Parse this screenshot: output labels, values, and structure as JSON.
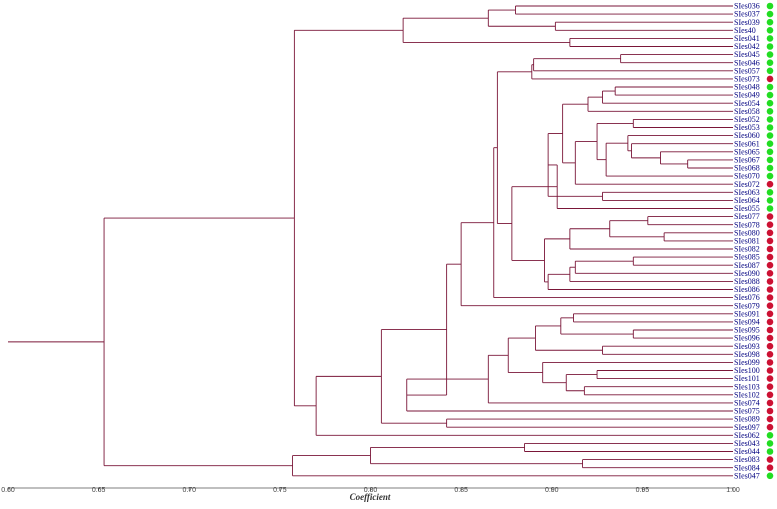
{
  "chart_data": {
    "type": "dendrogram",
    "xlabel": "Coefficient",
    "xlim": [
      0.6,
      1.0
    ],
    "ticks": [
      "0.60",
      "0.65",
      "0.70",
      "0.75",
      "0.80",
      "0.85",
      "0.90",
      "0.95",
      "1.00"
    ],
    "group_colors": {
      "green": "#22dd22",
      "red": "#cc1133"
    },
    "branch_color": "#7a1638",
    "leaves": [
      {
        "label": "SIes036",
        "group": "green"
      },
      {
        "label": "SIes037",
        "group": "green"
      },
      {
        "label": "SIes039",
        "group": "green"
      },
      {
        "label": "SIes40",
        "group": "green"
      },
      {
        "label": "SIes041",
        "group": "green"
      },
      {
        "label": "SIes042",
        "group": "green"
      },
      {
        "label": "SIes045",
        "group": "green"
      },
      {
        "label": "SIes046",
        "group": "green"
      },
      {
        "label": "SIes057",
        "group": "green"
      },
      {
        "label": "SIes073",
        "group": "red"
      },
      {
        "label": "SIes048",
        "group": "green"
      },
      {
        "label": "SIes049",
        "group": "green"
      },
      {
        "label": "SIes054",
        "group": "green"
      },
      {
        "label": "SIes058",
        "group": "green"
      },
      {
        "label": "SIes052",
        "group": "green"
      },
      {
        "label": "SIes053",
        "group": "green"
      },
      {
        "label": "SIes060",
        "group": "green"
      },
      {
        "label": "SIes061",
        "group": "green"
      },
      {
        "label": "SIes065",
        "group": "green"
      },
      {
        "label": "SIes067",
        "group": "green"
      },
      {
        "label": "SIes068",
        "group": "green"
      },
      {
        "label": "SIes070",
        "group": "green"
      },
      {
        "label": "SIes072",
        "group": "red"
      },
      {
        "label": "SIes063",
        "group": "green"
      },
      {
        "label": "SIes064",
        "group": "green"
      },
      {
        "label": "SIes055",
        "group": "green"
      },
      {
        "label": "SIes077",
        "group": "red"
      },
      {
        "label": "SIes078",
        "group": "red"
      },
      {
        "label": "SIes080",
        "group": "red"
      },
      {
        "label": "SIes081",
        "group": "red"
      },
      {
        "label": "SIes082",
        "group": "red"
      },
      {
        "label": "SIes085",
        "group": "red"
      },
      {
        "label": "SIes087",
        "group": "red"
      },
      {
        "label": "SIes090",
        "group": "red"
      },
      {
        "label": "SIes088",
        "group": "red"
      },
      {
        "label": "SIes086",
        "group": "red"
      },
      {
        "label": "SIes076",
        "group": "red"
      },
      {
        "label": "SIes079",
        "group": "red"
      },
      {
        "label": "SIes091",
        "group": "red"
      },
      {
        "label": "SIes094",
        "group": "red"
      },
      {
        "label": "SIes095",
        "group": "red"
      },
      {
        "label": "SIes096",
        "group": "red"
      },
      {
        "label": "SIes093",
        "group": "red"
      },
      {
        "label": "SIes098",
        "group": "red"
      },
      {
        "label": "SIes099",
        "group": "red"
      },
      {
        "label": "SIes100",
        "group": "red"
      },
      {
        "label": "SIes101",
        "group": "red"
      },
      {
        "label": "SIes103",
        "group": "red"
      },
      {
        "label": "SIes102",
        "group": "red"
      },
      {
        "label": "SIes074",
        "group": "red"
      },
      {
        "label": "SIes075",
        "group": "red"
      },
      {
        "label": "SIes089",
        "group": "red"
      },
      {
        "label": "SIes097",
        "group": "red"
      },
      {
        "label": "SIes062",
        "group": "green"
      },
      {
        "label": "SIes043",
        "group": "green"
      },
      {
        "label": "SIes044",
        "group": "green"
      },
      {
        "label": "SIes083",
        "group": "red"
      },
      {
        "label": "SIes084",
        "group": "red"
      },
      {
        "label": "SIes047",
        "group": "green"
      }
    ],
    "merges": [
      {
        "a": "L0",
        "b": "L1",
        "c": 0.88
      },
      {
        "a": "L2",
        "b": "L3",
        "c": 0.902
      },
      {
        "a": "n0",
        "b": "n1",
        "c": 0.865
      },
      {
        "a": "L4",
        "b": "L5",
        "c": 0.91
      },
      {
        "a": "n2",
        "b": "n3",
        "c": 0.818
      },
      {
        "a": "L6",
        "b": "L7",
        "c": 0.938
      },
      {
        "a": "n5",
        "b": "L8",
        "c": 0.89
      },
      {
        "a": "n6",
        "b": "L9",
        "c": 0.889
      },
      {
        "a": "L10",
        "b": "L11",
        "c": 0.935
      },
      {
        "a": "n8",
        "b": "L12",
        "c": 0.928
      },
      {
        "a": "n9",
        "b": "L13",
        "c": 0.92
      },
      {
        "a": "L14",
        "b": "L15",
        "c": 0.945
      },
      {
        "a": "L19",
        "b": "L20",
        "c": 0.975
      },
      {
        "a": "L18",
        "b": "n12",
        "c": 0.96
      },
      {
        "a": "L17",
        "b": "n13",
        "c": 0.944
      },
      {
        "a": "L16",
        "b": "n14",
        "c": 0.942
      },
      {
        "a": "n15",
        "b": "L21",
        "c": 0.93
      },
      {
        "a": "n11",
        "b": "n16",
        "c": 0.925
      },
      {
        "a": "n17",
        "b": "L22",
        "c": 0.913
      },
      {
        "a": "n10",
        "b": "n18",
        "c": 0.906
      },
      {
        "a": "L23",
        "b": "L24",
        "c": 0.928
      },
      {
        "a": "n19",
        "b": "n20",
        "c": 0.898
      },
      {
        "a": "n21",
        "b": "L25",
        "c": 0.903
      },
      {
        "a": "L26",
        "b": "L27",
        "c": 0.953
      },
      {
        "a": "L28",
        "b": "L29",
        "c": 0.962
      },
      {
        "a": "n23",
        "b": "n24",
        "c": 0.932
      },
      {
        "a": "n25",
        "b": "L30",
        "c": 0.91
      },
      {
        "a": "L31",
        "b": "L32",
        "c": 0.945
      },
      {
        "a": "n27",
        "b": "L33",
        "c": 0.913
      },
      {
        "a": "n28",
        "b": "L34",
        "c": 0.91
      },
      {
        "a": "n29",
        "b": "L35",
        "c": 0.898
      },
      {
        "a": "n26",
        "b": "n30",
        "c": 0.896
      },
      {
        "a": "n22",
        "b": "n31",
        "c": 0.878
      },
      {
        "a": "n7",
        "b": "n32",
        "c": 0.87
      },
      {
        "a": "n33",
        "b": "L36",
        "c": 0.868
      },
      {
        "a": "n34",
        "b": "L37",
        "c": 0.85
      },
      {
        "a": "L38",
        "b": "L39",
        "c": 0.912
      },
      {
        "a": "L40",
        "b": "L41",
        "c": 0.945
      },
      {
        "a": "n36",
        "b": "n37",
        "c": 0.905
      },
      {
        "a": "L42",
        "b": "L43",
        "c": 0.928
      },
      {
        "a": "n38",
        "b": "n39",
        "c": 0.891
      },
      {
        "a": "L45",
        "b": "L46",
        "c": 0.925
      },
      {
        "a": "L47",
        "b": "L48",
        "c": 0.918
      },
      {
        "a": "n41",
        "b": "n42",
        "c": 0.908
      },
      {
        "a": "L44",
        "b": "n43",
        "c": 0.895
      },
      {
        "a": "n40",
        "b": "n44",
        "c": 0.876
      },
      {
        "a": "n45",
        "b": "L49",
        "c": 0.865
      },
      {
        "a": "n46",
        "b": "L50",
        "c": 0.82
      },
      {
        "a": "n35",
        "b": "n47",
        "c": 0.842
      },
      {
        "a": "L51",
        "b": "L52",
        "c": 0.842
      },
      {
        "a": "n48",
        "b": "n49",
        "c": 0.806
      },
      {
        "a": "n50",
        "b": "L53",
        "c": 0.77
      },
      {
        "a": "n4",
        "b": "n51",
        "c": 0.758
      },
      {
        "a": "L54",
        "b": "L55",
        "c": 0.885
      },
      {
        "a": "L56",
        "b": "L57",
        "c": 0.917
      },
      {
        "a": "n53",
        "b": "n54",
        "c": 0.8
      },
      {
        "a": "n55",
        "b": "L58",
        "c": 0.757
      },
      {
        "a": "n52",
        "b": "n56",
        "c": 0.653
      },
      {
        "a": "n57",
        "b": "ROOT",
        "c": 0.6
      }
    ]
  }
}
